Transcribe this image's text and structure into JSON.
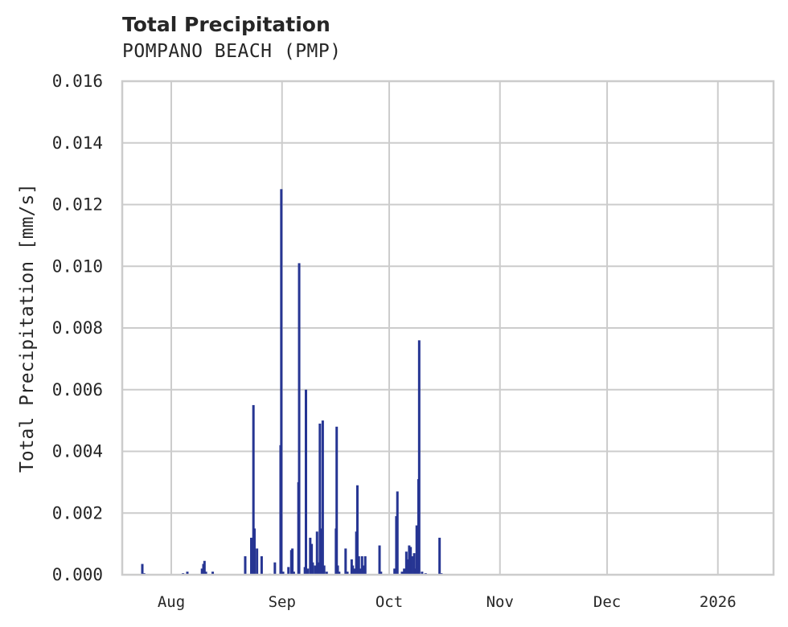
{
  "header": {
    "title": "Total Precipitation",
    "subtitle": "POMPANO BEACH (PMP)"
  },
  "colors": {
    "bar": "#263593",
    "grid": "#cccccc",
    "axis": "#cccccc",
    "text": "#262626"
  },
  "chart_data": {
    "type": "bar",
    "title": "Total Precipitation",
    "subtitle": "POMPANO BEACH (PMP)",
    "xlabel": "",
    "ylabel": "Total Precipitation [mm/s]",
    "ylim": [
      0,
      0.016
    ],
    "yticks": [
      "0.000",
      "0.002",
      "0.004",
      "0.006",
      "0.008",
      "0.010",
      "0.012",
      "0.014",
      "0.016"
    ],
    "xticks": [
      "Aug",
      "Sep",
      "Oct",
      "Nov",
      "Dec",
      "2026"
    ],
    "xlim_days": [
      -11,
      158
    ],
    "grid": true,
    "legend": null,
    "x_unit": "days since Aug 1",
    "points": [
      {
        "day": -8.1,
        "value": 0.00035
      },
      {
        "day": -7.6,
        "value": 5e-05
      },
      {
        "day": 3.3,
        "value": 5e-05
      },
      {
        "day": 4.5,
        "value": 0.0001
      },
      {
        "day": 8.6,
        "value": 0.0002
      },
      {
        "day": 9.0,
        "value": 0.00035
      },
      {
        "day": 9.3,
        "value": 0.00045
      },
      {
        "day": 9.7,
        "value": 0.0001
      },
      {
        "day": 11.6,
        "value": 0.0001
      },
      {
        "day": 20.7,
        "value": 0.0006
      },
      {
        "day": 22.4,
        "value": 0.0012
      },
      {
        "day": 23.0,
        "value": 0.0055
      },
      {
        "day": 23.3,
        "value": 0.0015
      },
      {
        "day": 24.0,
        "value": 0.00085
      },
      {
        "day": 25.3,
        "value": 0.0006
      },
      {
        "day": 27.6,
        "value": 3e-05
      },
      {
        "day": 29.0,
        "value": 0.0004
      },
      {
        "day": 30.6,
        "value": 0.0042
      },
      {
        "day": 30.8,
        "value": 0.0125
      },
      {
        "day": 31.3,
        "value": 0.0001
      },
      {
        "day": 32.8,
        "value": 0.00025
      },
      {
        "day": 33.6,
        "value": 0.0008
      },
      {
        "day": 33.9,
        "value": 0.00085
      },
      {
        "day": 34.3,
        "value": 0.0001
      },
      {
        "day": 35.6,
        "value": 0.003
      },
      {
        "day": 35.8,
        "value": 0.0101
      },
      {
        "day": 37.4,
        "value": 0.00025
      },
      {
        "day": 37.7,
        "value": 0.006
      },
      {
        "day": 38.2,
        "value": 0.0002
      },
      {
        "day": 38.9,
        "value": 0.0012
      },
      {
        "day": 39.3,
        "value": 0.001
      },
      {
        "day": 39.6,
        "value": 0.0004
      },
      {
        "day": 40.3,
        "value": 0.0003
      },
      {
        "day": 40.8,
        "value": 0.0014
      },
      {
        "day": 41.2,
        "value": 0.0004
      },
      {
        "day": 41.6,
        "value": 0.0049
      },
      {
        "day": 42.2,
        "value": 0.0015
      },
      {
        "day": 42.4,
        "value": 0.005
      },
      {
        "day": 42.8,
        "value": 0.0003
      },
      {
        "day": 43.5,
        "value": 0.0001
      },
      {
        "day": 46.1,
        "value": 0.0015
      },
      {
        "day": 46.3,
        "value": 0.0048
      },
      {
        "day": 46.6,
        "value": 0.0003
      },
      {
        "day": 47.0,
        "value": 0.0001
      },
      {
        "day": 48.8,
        "value": 0.00085
      },
      {
        "day": 49.3,
        "value": 0.0001
      },
      {
        "day": 50.5,
        "value": 0.0005
      },
      {
        "day": 50.8,
        "value": 0.0003
      },
      {
        "day": 51.3,
        "value": 0.0002
      },
      {
        "day": 51.8,
        "value": 0.0014
      },
      {
        "day": 52.1,
        "value": 0.0029
      },
      {
        "day": 52.5,
        "value": 0.0006
      },
      {
        "day": 53.0,
        "value": 0.0002
      },
      {
        "day": 53.4,
        "value": 0.0006
      },
      {
        "day": 53.9,
        "value": 0.0003
      },
      {
        "day": 54.3,
        "value": 0.0006
      },
      {
        "day": 58.3,
        "value": 0.00095
      },
      {
        "day": 58.7,
        "value": 0.0001
      },
      {
        "day": 62.5,
        "value": 0.0002
      },
      {
        "day": 63.0,
        "value": 0.0019
      },
      {
        "day": 63.3,
        "value": 0.0027
      },
      {
        "day": 64.6,
        "value": 0.0001
      },
      {
        "day": 65.2,
        "value": 0.0002
      },
      {
        "day": 65.8,
        "value": 0.00075
      },
      {
        "day": 66.2,
        "value": 0.0005
      },
      {
        "day": 66.6,
        "value": 0.00095
      },
      {
        "day": 67.0,
        "value": 0.0009
      },
      {
        "day": 67.4,
        "value": 0.0006
      },
      {
        "day": 68.0,
        "value": 0.0007
      },
      {
        "day": 68.4,
        "value": 0.0002
      },
      {
        "day": 68.7,
        "value": 0.0016
      },
      {
        "day": 69.2,
        "value": 0.0031
      },
      {
        "day": 69.4,
        "value": 0.0076
      },
      {
        "day": 70.2,
        "value": 0.0001
      },
      {
        "day": 71.2,
        "value": 5e-05
      },
      {
        "day": 75.1,
        "value": 0.0012
      },
      {
        "day": 75.6,
        "value": 5e-05
      }
    ]
  }
}
